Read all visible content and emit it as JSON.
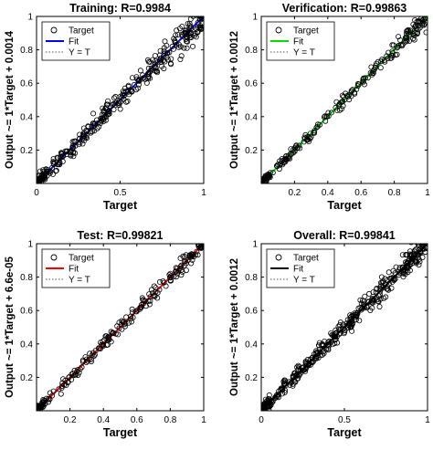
{
  "chart_data": [
    {
      "type": "scatter",
      "title": "Training: R=0.9984",
      "xlabel": "Target",
      "ylabel": "Output ~= 1*Target + 0.0014",
      "xlim": [
        0,
        1
      ],
      "ylim": [
        0,
        1
      ],
      "xticks": [
        "0",
        "0.5",
        "1"
      ],
      "yticks": [
        "0.2",
        "0.4",
        "0.6",
        "0.8",
        "1"
      ],
      "fit_color": "#0000ff",
      "fit": {
        "slope": 1.0,
        "intercept": 0.0014
      },
      "noise": 0.03,
      "point_count": 360,
      "legend": {
        "position": "top-left",
        "entries": [
          "Target",
          "Fit",
          "Y = T"
        ]
      }
    },
    {
      "type": "scatter",
      "title": "Verification: R=0.99863",
      "xlabel": "Target",
      "ylabel": "Output ~= 1*Target + 0.0012",
      "xlim": [
        0,
        1
      ],
      "ylim": [
        0,
        1
      ],
      "xticks": [
        "0.2",
        "0.4",
        "0.6",
        "0.8",
        "1"
      ],
      "yticks": [
        "0.2",
        "0.4",
        "0.6",
        "0.8",
        "1"
      ],
      "fit_color": "#00dd00",
      "fit": {
        "slope": 1.0,
        "intercept": 0.0012
      },
      "noise": 0.018,
      "point_count": 230,
      "legend": {
        "position": "top-left",
        "entries": [
          "Target",
          "Fit",
          "Y = T"
        ]
      }
    },
    {
      "type": "scatter",
      "title": "Test: R=0.99821",
      "xlabel": "Target",
      "ylabel": "Output ~= 1*Target + 6.6e-05",
      "xlim": [
        0,
        1
      ],
      "ylim": [
        0,
        1
      ],
      "xticks": [
        "0.2",
        "0.4",
        "0.6",
        "0.8",
        "1"
      ],
      "yticks": [
        "0.2",
        "0.4",
        "0.6",
        "0.8",
        "1"
      ],
      "fit_color": "#ff0000",
      "fit": {
        "slope": 1.0,
        "intercept": 6.6e-05
      },
      "noise": 0.02,
      "point_count": 230,
      "legend": {
        "position": "top-left",
        "entries": [
          "Target",
          "Fit",
          "Y = T"
        ]
      }
    },
    {
      "type": "scatter",
      "title": "Overall: R=0.99841",
      "xlabel": "Target",
      "ylabel": "Output ~= 1*Target + 0.0012",
      "xlim": [
        0,
        1
      ],
      "ylim": [
        0,
        1
      ],
      "xticks": [
        "0",
        "0.5",
        "1"
      ],
      "yticks": [
        "0.2",
        "0.4",
        "0.6",
        "0.8",
        "1"
      ],
      "fit_color": "#000000",
      "fit": {
        "slope": 1.0,
        "intercept": 0.0012
      },
      "noise": 0.03,
      "point_count": 420,
      "legend": {
        "position": "top-left",
        "entries": [
          "Target",
          "Fit",
          "Y = T"
        ]
      }
    }
  ]
}
